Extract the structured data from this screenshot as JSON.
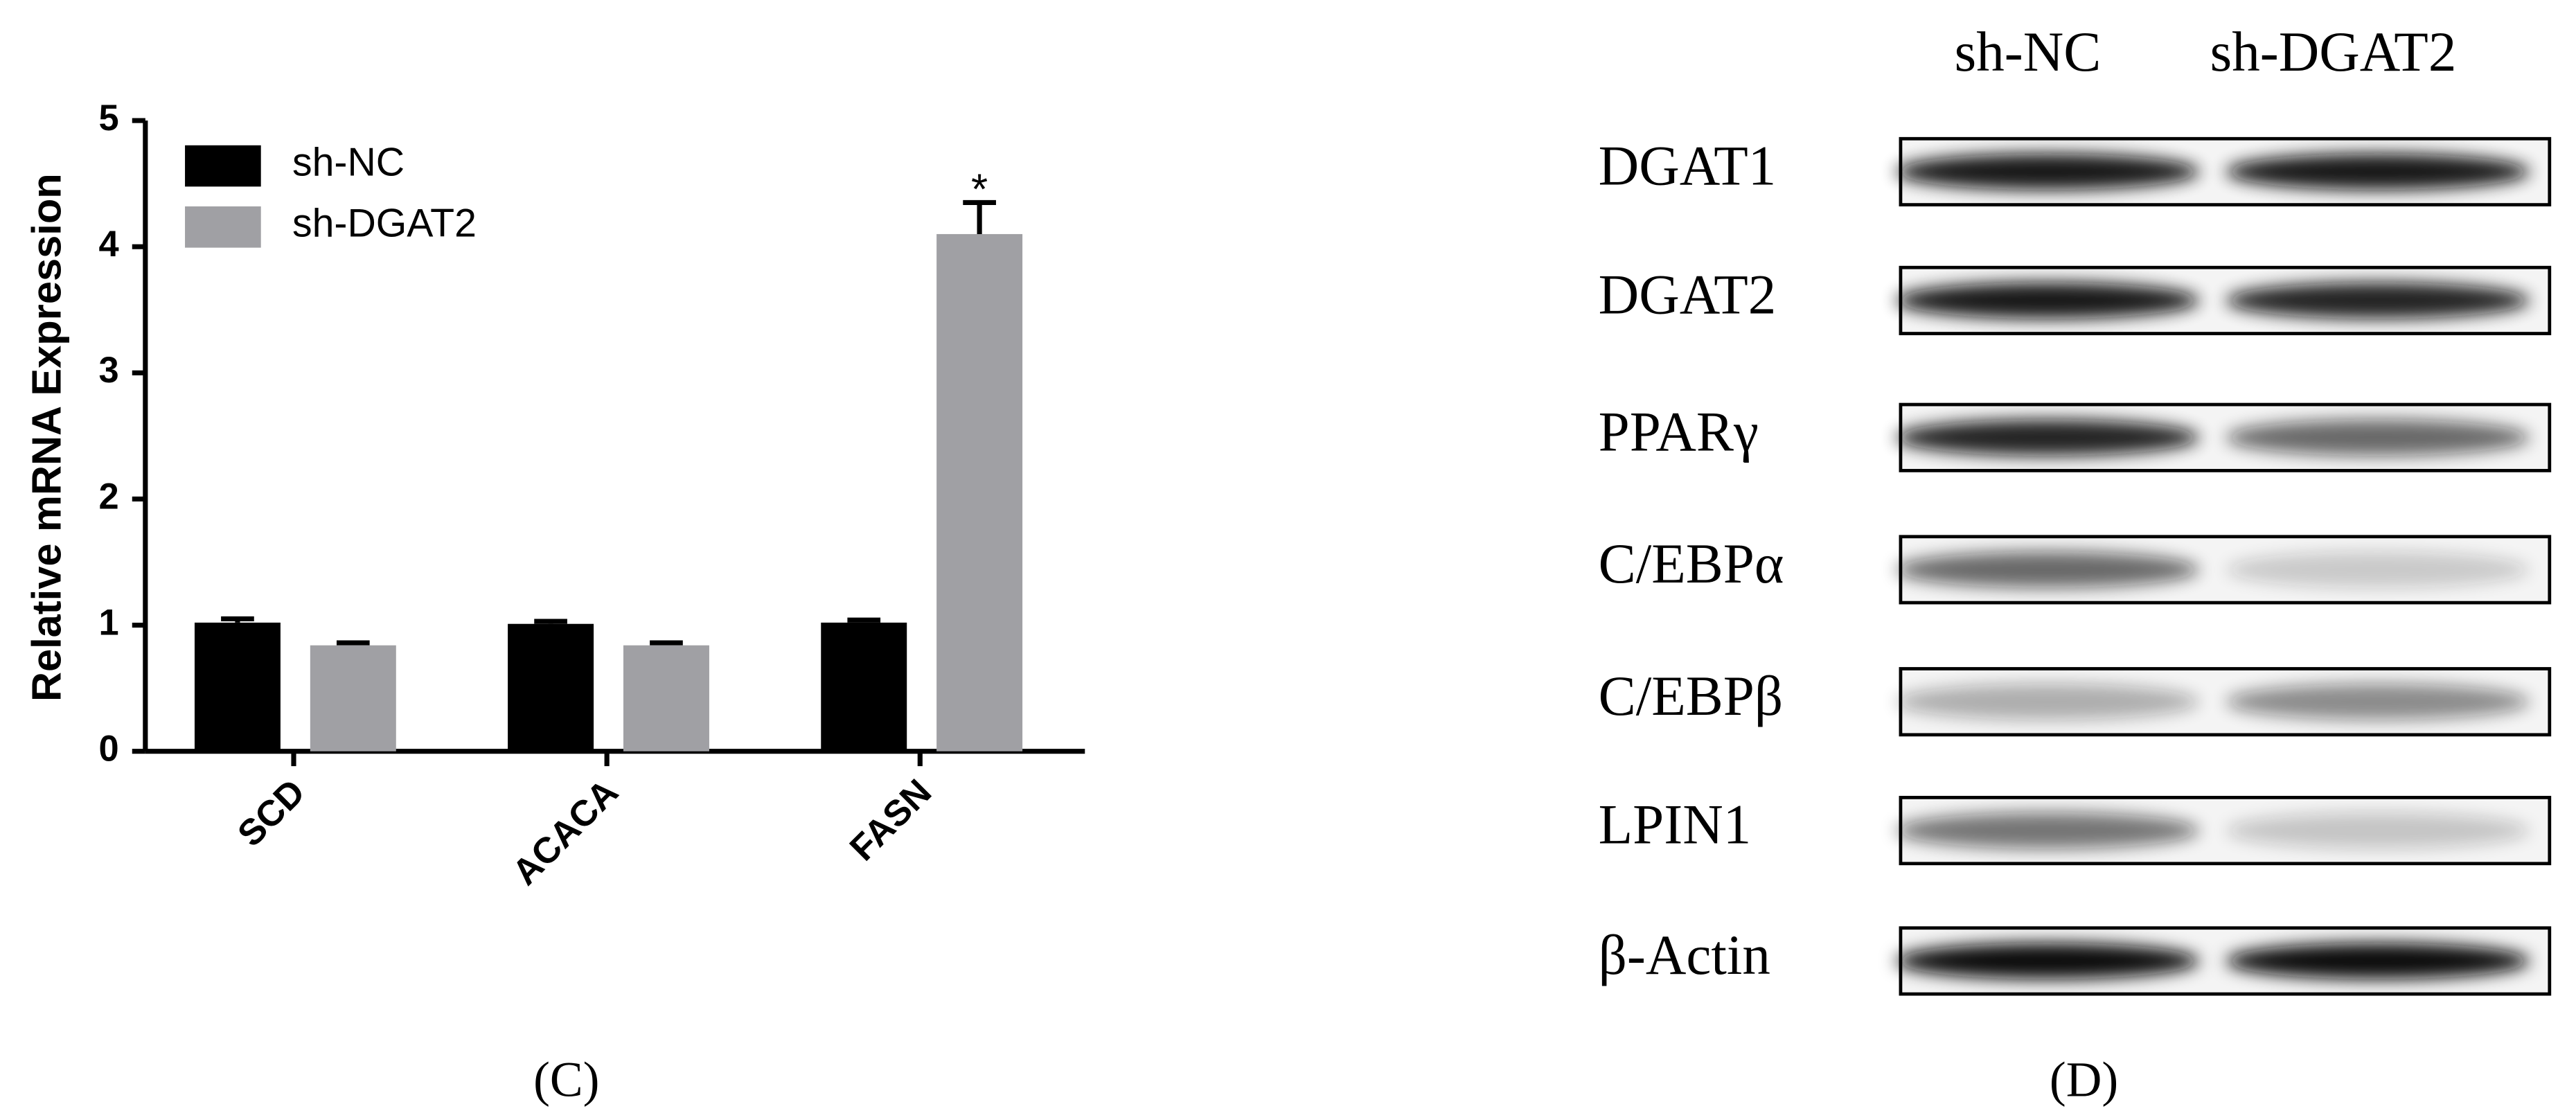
{
  "chart_data": {
    "type": "bar",
    "ylabel": "Relative mRNA Expression",
    "categories": [
      "SCD",
      "ACACA",
      "FASN"
    ],
    "series": [
      {
        "name": "sh-NC",
        "color": "#000000",
        "values": [
          1.02,
          1.01,
          1.02
        ],
        "errors": [
          0.03,
          0.02,
          0.02
        ]
      },
      {
        "name": "sh-DGAT2",
        "color": "#a0a0a4",
        "values": [
          0.84,
          0.84,
          4.1
        ],
        "errors": [
          0.02,
          0.02,
          0.25
        ]
      }
    ],
    "annotations": [
      {
        "text": "*",
        "series": 1,
        "category": 2
      }
    ],
    "ylim": [
      0,
      5
    ],
    "yticks": [
      0,
      1,
      2,
      3,
      4,
      5
    ],
    "grid": false,
    "legend": "top-left"
  },
  "panel_labels": [
    "(C)",
    "(D)"
  ],
  "blot": {
    "columns": [
      "sh-NC",
      "sh-DGAT2"
    ],
    "rows": [
      "DGAT1",
      "DGAT2",
      "PPARγ",
      "C/EBPα",
      "C/EBPβ",
      "LPIN1",
      "β-Actin"
    ]
  }
}
